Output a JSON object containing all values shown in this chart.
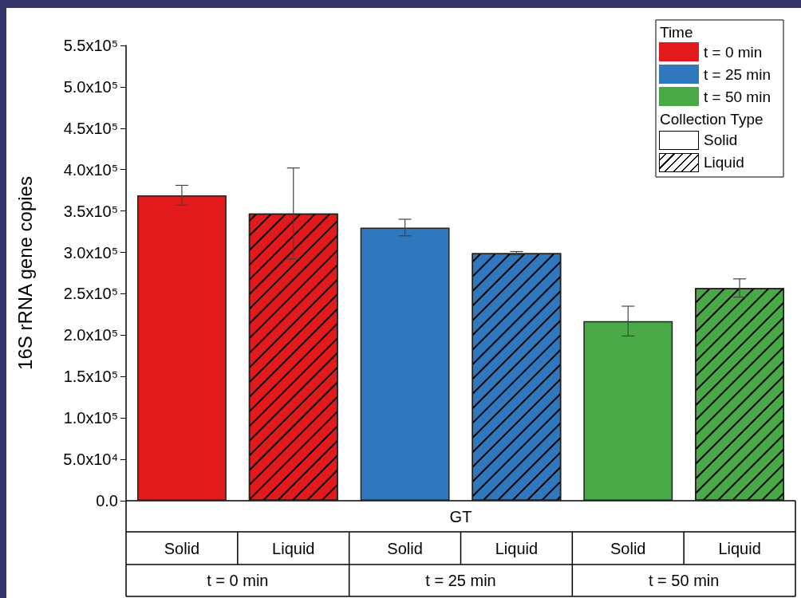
{
  "chart_data": {
    "type": "bar",
    "ylabel": "16S rRNA gene copies",
    "legend_title": "Time",
    "categories": [
      "t = 0 min",
      "t = 25 min",
      "t = 50 min"
    ],
    "series": [
      {
        "name": "Solid",
        "colors": [
          "#e31a1c",
          "#2f78bd",
          "#49a946"
        ],
        "values": [
          369000,
          330000,
          217000
        ],
        "errors": [
          12000,
          10000,
          18000
        ]
      },
      {
        "name": "Liquid",
        "colors": [
          "#e31a1c",
          "#2f78bd",
          "#49a946"
        ],
        "values": [
          347000,
          299000,
          257000
        ],
        "errors": [
          55000,
          2000,
          11000
        ]
      }
    ],
    "ylim": [
      0,
      550000
    ],
    "yticks": [
      {
        "value": 0,
        "label": "0.0"
      },
      {
        "value": 50000,
        "label": "5.0x10⁴"
      },
      {
        "value": 100000,
        "label": "1.0x10⁵"
      },
      {
        "value": 150000,
        "label": "1.5x10⁵"
      },
      {
        "value": 200000,
        "label": "2.0x10⁵"
      },
      {
        "value": 250000,
        "label": "2.5x10⁵"
      },
      {
        "value": 300000,
        "label": "3.0x10⁵"
      },
      {
        "value": 350000,
        "label": "3.5x10⁵"
      },
      {
        "value": 400000,
        "label": "4.0x10⁵"
      },
      {
        "value": 450000,
        "label": "4.5x10⁵"
      },
      {
        "value": 500000,
        "label": "5.0x10⁵"
      },
      {
        "value": 550000,
        "label": "5.5x10⁵"
      }
    ],
    "grid": false,
    "legend": "top right",
    "annotations": [
      "Collection Type",
      "GT"
    ]
  }
}
